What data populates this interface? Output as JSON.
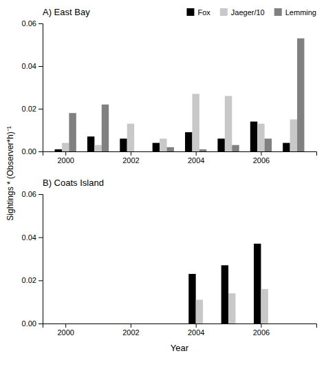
{
  "chart_data": [
    {
      "type": "bar",
      "title": "A) East Bay",
      "ylabel": "Sightings * (Observer*h)⁻¹",
      "x": [
        2000,
        2001,
        2002,
        2003,
        2004,
        2005,
        2006,
        2007
      ],
      "xlim": [
        1999.3,
        2007.7
      ],
      "xticks": [
        2000,
        2002,
        2004,
        2006
      ],
      "ylim": [
        0,
        0.06
      ],
      "yticks": [
        {
          "value": 0,
          "label": "0.00"
        },
        0.02,
        0.04,
        0.06
      ],
      "legend": "upper right",
      "series": [
        {
          "name": "Fox",
          "color": "#000000",
          "values": [
            0.001,
            0.007,
            0.006,
            0.004,
            0.009,
            0.006,
            0.014,
            0.004
          ]
        },
        {
          "name": "Jaeger/10",
          "color": "#c8c8c8",
          "values": [
            0.004,
            0.003,
            0.013,
            0.006,
            0.027,
            0.026,
            0.013,
            0.015
          ]
        },
        {
          "name": "Lemming",
          "color": "#808080",
          "values": [
            0.018,
            0.022,
            0.0,
            0.002,
            0.001,
            0.003,
            0.006,
            0.053
          ]
        }
      ]
    },
    {
      "type": "bar",
      "title": "B) Coats Island",
      "xlabel": "Year",
      "x": [
        2000,
        2001,
        2002,
        2003,
        2004,
        2005,
        2006,
        2007
      ],
      "xlim": [
        1999.3,
        2007.7
      ],
      "xticks": [
        2000,
        2002,
        2004,
        2006
      ],
      "ylim": [
        0,
        0.06
      ],
      "yticks": [
        {
          "value": 0,
          "label": "0.00"
        },
        0.02,
        0.04,
        0.06
      ],
      "series": [
        {
          "color": "#000000",
          "values": [
            0.0,
            0.0,
            0.0,
            0.0,
            0.023,
            0.027,
            0.037,
            0.0
          ]
        },
        {
          "color": "#c8c8c8",
          "values": [
            0.0,
            0.0,
            0.0,
            0.0,
            0.011,
            0.014,
            0.016,
            0.0
          ]
        }
      ]
    }
  ]
}
